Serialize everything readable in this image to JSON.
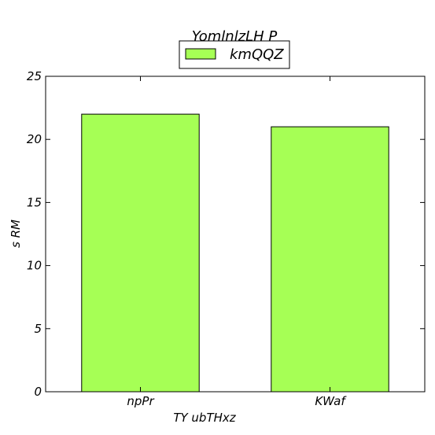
{
  "chart_data": {
    "type": "bar",
    "title": "YomlnlzLH P",
    "xlabel": "TY    ubTHxz",
    "ylabel": "s RM",
    "categories": [
      "npPr",
      "KWaf"
    ],
    "series": [
      {
        "name": "kmQQZ",
        "values": [
          22,
          21
        ]
      }
    ],
    "ylim": [
      0,
      25
    ],
    "yticks": [
      0,
      5,
      10,
      15,
      20,
      25
    ],
    "grid": false,
    "legend": "top-center",
    "colors": {
      "bar": "#a6ff55",
      "edge": "#000000"
    }
  }
}
